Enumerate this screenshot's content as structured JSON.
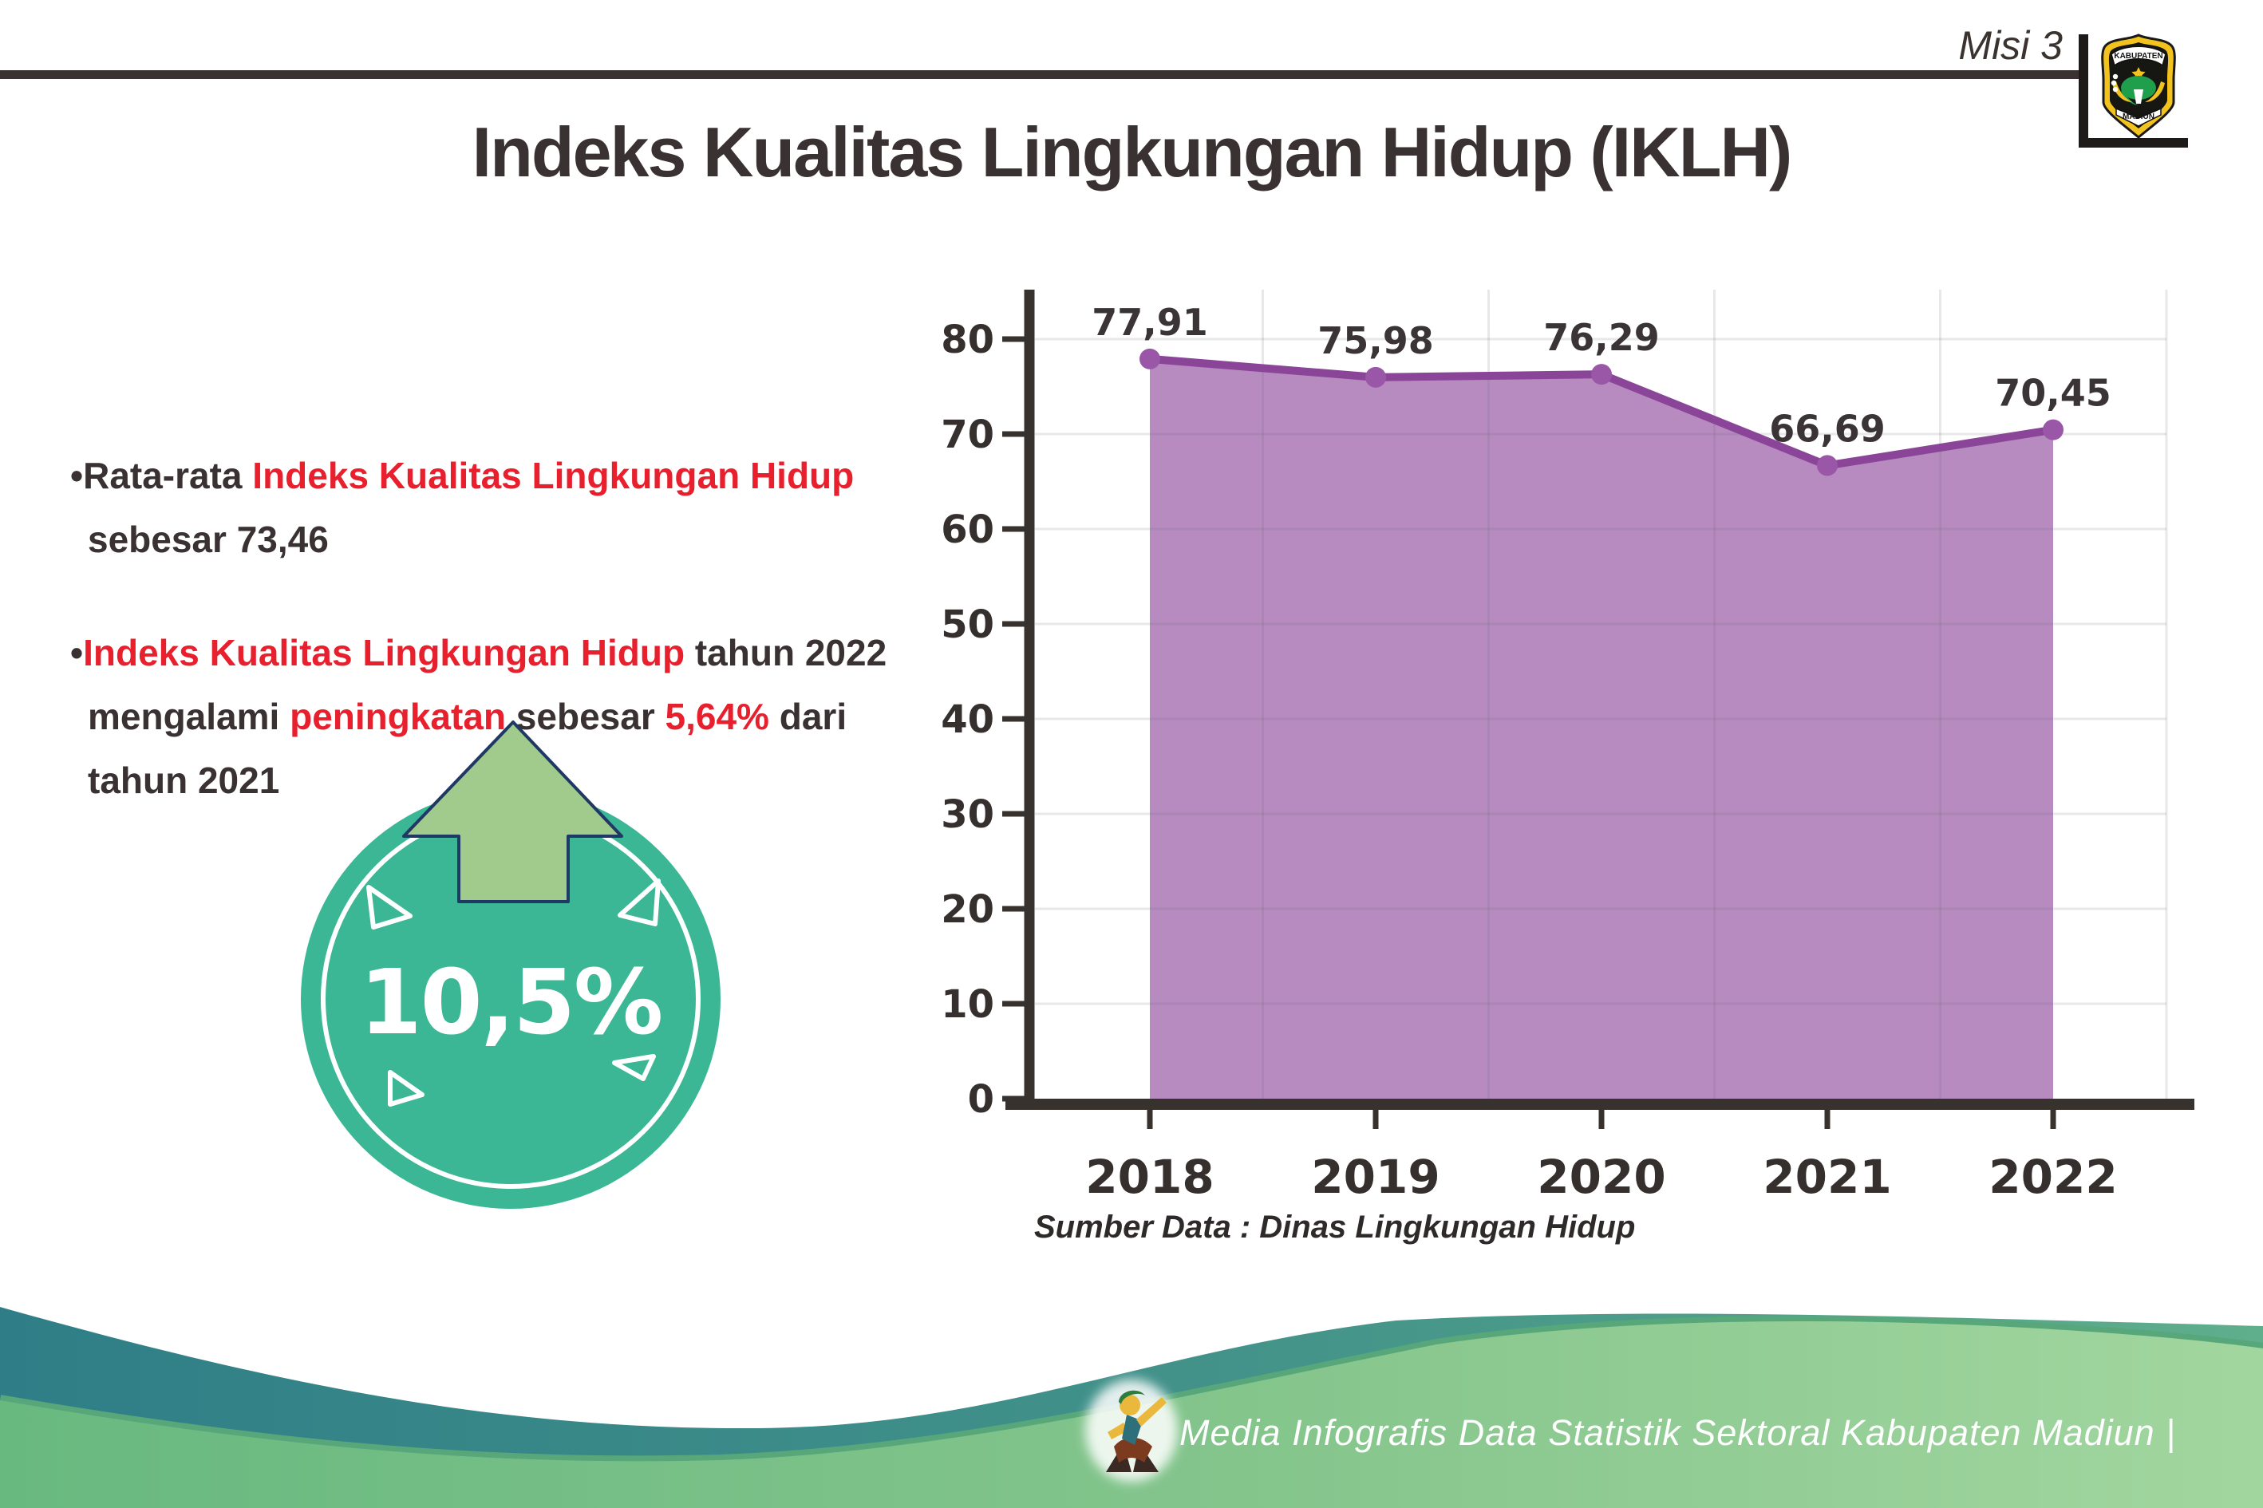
{
  "header": {
    "misi_label": "Misi 3",
    "title": "Indeks Kualitas Lingkungan Hidup (IKLH)",
    "logo": {
      "top_text": "KABUPATEN",
      "bottom_text": "MADIUN"
    }
  },
  "bullets": [
    {
      "lines": [
        {
          "segments": [
            {
              "text": "•Rata-rata ",
              "color": "dark"
            },
            {
              "text": "Indeks Kualitas Lingkungan Hidup",
              "color": "red"
            }
          ]
        },
        {
          "segments": [
            {
              "text": "sebesar 73,46",
              "color": "dark"
            }
          ],
          "indent": true
        }
      ]
    },
    {
      "lines": [
        {
          "segments": [
            {
              "text": "•",
              "color": "dark"
            },
            {
              "text": "Indeks Kualitas Lingkungan Hidup",
              "color": "red"
            },
            {
              "text": " tahun 2022",
              "color": "dark"
            }
          ]
        },
        {
          "segments": [
            {
              "text": "mengalami ",
              "color": "dark"
            },
            {
              "text": "peningkatan",
              "color": "red"
            },
            {
              "text": " sebesar ",
              "color": "dark"
            },
            {
              "text": "5,64%",
              "color": "red"
            },
            {
              "text": " dari",
              "color": "dark"
            }
          ],
          "indent": true
        },
        {
          "segments": [
            {
              "text": "tahun 2021",
              "color": "dark"
            }
          ],
          "indent": true
        }
      ]
    }
  ],
  "badge": {
    "value_label": "10,5%",
    "circle_color": "#3bb796",
    "arrow_color": "#a0cb8d",
    "arrow_outline": "#1f3864"
  },
  "chart_data": {
    "type": "area",
    "title": "",
    "categories": [
      "2018",
      "2019",
      "2020",
      "2021",
      "2022"
    ],
    "values": [
      77.91,
      75.98,
      76.29,
      66.69,
      70.45
    ],
    "value_labels": [
      "77,91",
      "75,98",
      "76,29",
      "66,69",
      "70,45"
    ],
    "ylim": [
      0,
      80
    ],
    "yticks": [
      0,
      10,
      20,
      30,
      40,
      50,
      60,
      70,
      80
    ],
    "grid": true,
    "legend": false,
    "source_note": "Sumber Data : Dinas Lingkungan Hidup",
    "colors": {
      "line": "#8a4598",
      "fill": "#b78ac0",
      "point": "#9a57a8",
      "axis": "#38322e"
    }
  },
  "footer": {
    "credit": "Media Infografis Data Statistik Sektoral Kabupaten Madiun |",
    "wave_teal": "#2f7e87",
    "wave_green": "#7fc189"
  },
  "text_colors": {
    "dark": "#3a3132",
    "red": "#e81f2d"
  }
}
